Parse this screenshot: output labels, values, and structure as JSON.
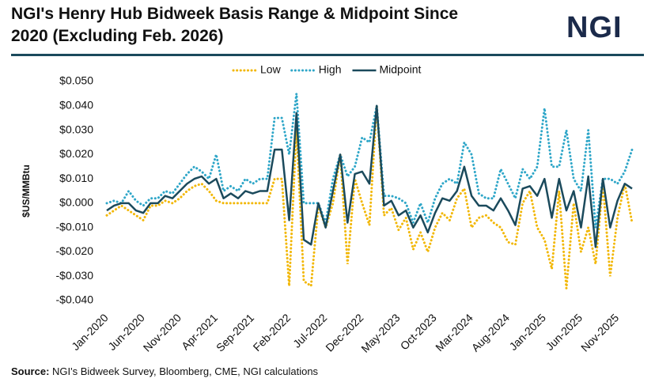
{
  "chart_data": {
    "type": "line",
    "title": "NGI's Henry Hub Bidweek Basis Range & Midpoint Since 2020 (Excluding Feb. 2026)",
    "logo": "NGI",
    "y_label": "$US/MMBtu",
    "source_label": "Source:",
    "source": "NGI's Bidweek Survey, Bloomberg, CME, NGI calculations",
    "categories": [
      "Jan-2020",
      null,
      null,
      null,
      null,
      "Jun-2020",
      null,
      null,
      null,
      null,
      "Nov-2020",
      null,
      null,
      null,
      null,
      "Apr-2021",
      null,
      null,
      null,
      null,
      "Sep-2021",
      null,
      null,
      null,
      null,
      "Feb-2022",
      null,
      null,
      null,
      null,
      "Jul-2022",
      null,
      null,
      null,
      null,
      "Dec-2022",
      null,
      null,
      null,
      null,
      "May-2023",
      null,
      null,
      null,
      null,
      "Oct-2023",
      null,
      null,
      null,
      null,
      "Mar-2024",
      null,
      null,
      null,
      null,
      "Aug-2024",
      null,
      null,
      null,
      null,
      "Jan-2025",
      null,
      null,
      null,
      null,
      "Jun-2025",
      null,
      null,
      null,
      null,
      "Nov-2025",
      null,
      null
    ],
    "ylim": [
      -0.04,
      0.05
    ],
    "yticks": [
      {
        "value": 0.05,
        "label": "$0.050"
      },
      {
        "value": 0.04,
        "label": "$0.040"
      },
      {
        "value": 0.03,
        "label": "$0.030"
      },
      {
        "value": 0.02,
        "label": "$0.020"
      },
      {
        "value": 0.01,
        "label": "$0.010"
      },
      {
        "value": 0,
        "label": "$0.000"
      },
      {
        "value": -0.01,
        "label": "-$0.010"
      },
      {
        "value": -0.02,
        "label": "-$0.020"
      },
      {
        "value": -0.03,
        "label": "-$0.030"
      },
      {
        "value": -0.04,
        "label": "-$0.040"
      }
    ],
    "series": [
      {
        "name": "Low",
        "color": "#f2b705",
        "style": "dotted",
        "values": [
          -0.005,
          -0.003,
          -0.001,
          -0.003,
          -0.005,
          -0.007,
          -0.001,
          -0.001,
          0.001,
          0.0,
          0.002,
          0.005,
          0.007,
          0.008,
          0.005,
          0.001,
          0.0,
          0.0,
          0.0,
          0.0,
          0.0,
          0.0,
          0.0,
          0.01,
          0.01,
          -0.034,
          0.031,
          -0.032,
          -0.034,
          -0.001,
          -0.01,
          0.0,
          0.02,
          -0.025,
          0.01,
          0.0,
          -0.009,
          0.04,
          -0.005,
          -0.002,
          -0.011,
          -0.006,
          -0.019,
          -0.012,
          -0.02,
          -0.01,
          -0.004,
          -0.007,
          0.002,
          0.006,
          -0.01,
          -0.006,
          -0.005,
          -0.008,
          -0.01,
          -0.016,
          -0.017,
          0.0,
          0.005,
          -0.01,
          -0.015,
          -0.027,
          0.005,
          -0.035,
          0.0,
          -0.02,
          -0.01,
          -0.025,
          0.008,
          -0.03,
          -0.006,
          0.008,
          -0.008
        ]
      },
      {
        "name": "High",
        "color": "#2ea6c8",
        "style": "dotted",
        "values": [
          0.0,
          0.001,
          0.0,
          0.005,
          0.001,
          -0.001,
          0.002,
          0.002,
          0.005,
          0.004,
          0.008,
          0.012,
          0.015,
          0.013,
          0.01,
          0.02,
          0.005,
          0.007,
          0.005,
          0.01,
          0.008,
          0.01,
          0.01,
          0.035,
          0.035,
          0.02,
          0.045,
          0.0,
          0.0,
          0.0,
          -0.008,
          0.01,
          0.02,
          0.011,
          0.015,
          0.027,
          0.025,
          0.04,
          0.003,
          0.003,
          0.002,
          0.0,
          -0.008,
          0.0,
          -0.008,
          0.002,
          0.008,
          0.01,
          0.008,
          0.025,
          0.02,
          0.004,
          0.002,
          0.002,
          0.014,
          0.008,
          0.002,
          0.014,
          0.01,
          0.015,
          0.039,
          0.015,
          0.015,
          0.03,
          0.01,
          0.005,
          0.03,
          -0.01,
          0.01,
          0.01,
          0.008,
          0.013,
          0.022
        ]
      },
      {
        "name": "Midpoint",
        "color": "#1b4a5c",
        "style": "solid",
        "values": [
          -0.003,
          -0.001,
          0.0,
          0.0,
          -0.003,
          -0.004,
          0.0,
          0.0,
          0.003,
          0.002,
          0.005,
          0.008,
          0.01,
          0.011,
          0.008,
          0.01,
          0.002,
          0.004,
          0.002,
          0.005,
          0.004,
          0.005,
          0.005,
          0.022,
          0.022,
          -0.007,
          0.037,
          -0.015,
          -0.017,
          0.0,
          -0.01,
          0.005,
          0.02,
          -0.008,
          0.012,
          0.013,
          0.008,
          0.04,
          -0.001,
          0.001,
          -0.005,
          -0.003,
          -0.01,
          -0.005,
          -0.012,
          -0.004,
          0.002,
          0.001,
          0.005,
          0.015,
          0.003,
          -0.001,
          -0.001,
          -0.003,
          0.002,
          -0.003,
          -0.009,
          0.006,
          0.007,
          0.003,
          0.01,
          -0.006,
          0.01,
          -0.003,
          0.005,
          -0.01,
          0.011,
          -0.018,
          0.01,
          -0.01,
          0.001,
          0.008,
          0.006
        ]
      }
    ]
  }
}
